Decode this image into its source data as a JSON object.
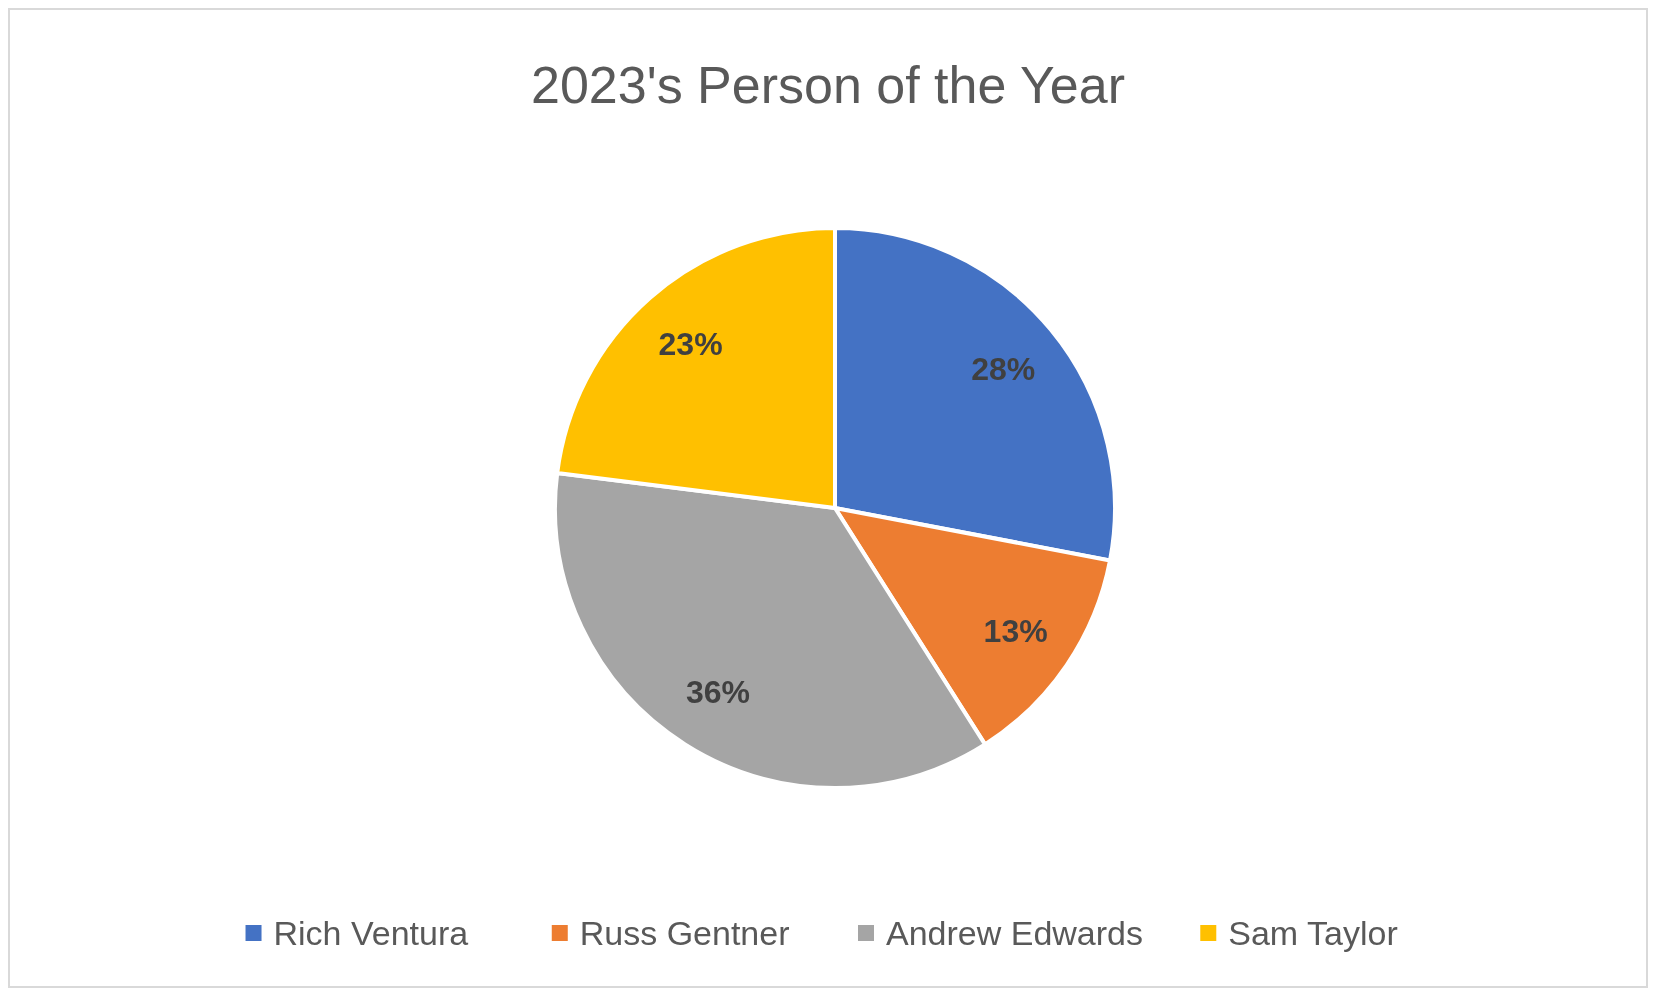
{
  "chart_data": {
    "type": "pie",
    "title": "2023's Person of the Year",
    "categories": [
      "Rich Ventura",
      "Russ Gentner",
      "Andrew Edwards",
      "Sam Taylor"
    ],
    "values": [
      28,
      13,
      36,
      23
    ],
    "colors": [
      "#4472c4",
      "#ed7d31",
      "#a5a5a5",
      "#ffc000"
    ],
    "value_labels": [
      "28%",
      "13%",
      "36%",
      "23%"
    ],
    "legend": "bottom"
  }
}
